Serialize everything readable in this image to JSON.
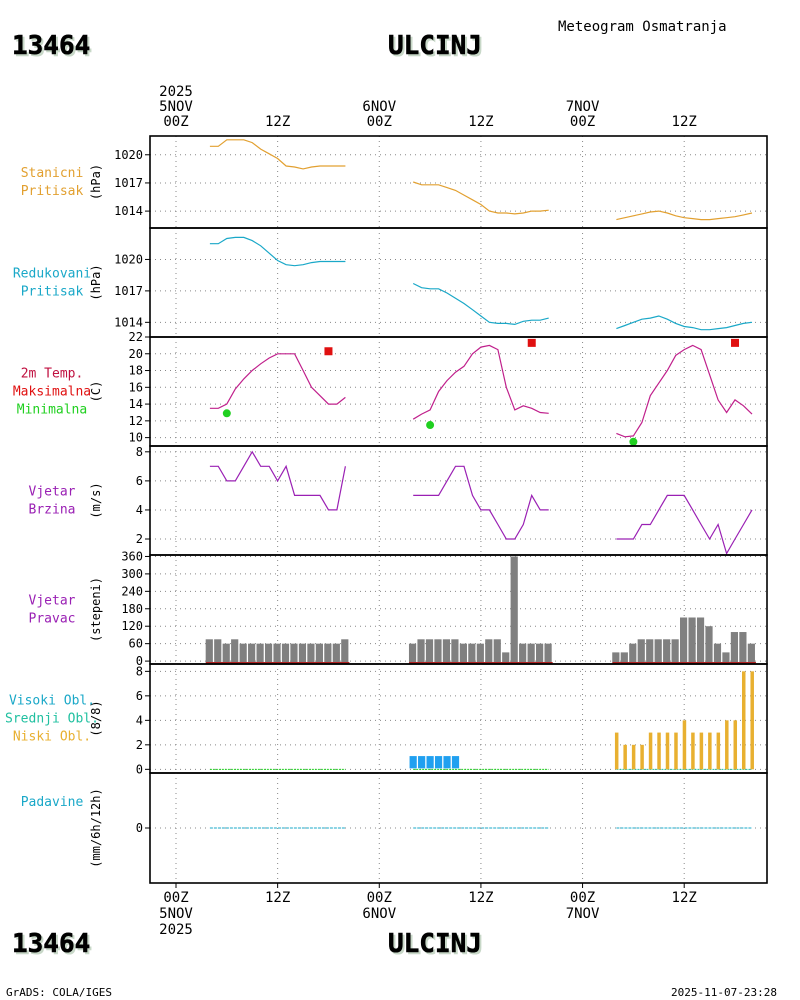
{
  "station": {
    "id": "13464",
    "name": "ULCINJ"
  },
  "header_title": "Meteogram Osmatranja",
  "footer": {
    "left": "GrADS: COLA/IGES",
    "right": "2025-11-07-23:28"
  },
  "colors": {
    "orange": "#e2a030",
    "cyan": "#1aa8c8",
    "magenta": "#c0208c",
    "purple": "#9a20b4",
    "red": "#e01010",
    "green": "#20d020",
    "gray": "#808080",
    "blue": "#20a0f0",
    "gold": "#e8b030",
    "teal": "#20c0a0",
    "crimson": "#c01040"
  },
  "time_axis": {
    "top": [
      {
        "hour": 0,
        "lines": [
          "2025",
          "5NOV",
          "00Z"
        ]
      },
      {
        "hour": 12,
        "lines": [
          "12Z"
        ]
      },
      {
        "hour": 24,
        "lines": [
          "6NOV",
          "00Z"
        ]
      },
      {
        "hour": 36,
        "lines": [
          "12Z"
        ]
      },
      {
        "hour": 48,
        "lines": [
          "7NOV",
          "00Z"
        ]
      },
      {
        "hour": 60,
        "lines": [
          "12Z"
        ]
      }
    ],
    "bottom": [
      {
        "hour": 0,
        "lines": [
          "00Z",
          "5NOV",
          "2025"
        ]
      },
      {
        "hour": 12,
        "lines": [
          "12Z"
        ]
      },
      {
        "hour": 24,
        "lines": [
          "00Z",
          "6NOV"
        ]
      },
      {
        "hour": 36,
        "lines": [
          "12Z"
        ]
      },
      {
        "hour": 48,
        "lines": [
          "00Z",
          "7NOV"
        ]
      },
      {
        "hour": 60,
        "lines": [
          "12Z"
        ]
      }
    ]
  },
  "chart_data": [
    {
      "id": "station-pressure",
      "type": "line",
      "labels": [
        "Stanicni",
        "Pritisak"
      ],
      "ylabel": "(hPa)",
      "ylim": [
        1012.2,
        1022
      ],
      "yticks": [
        1014,
        1017,
        1020
      ],
      "series": [
        {
          "name": "Stanicni Pritisak",
          "color": "orange",
          "segments": [
            {
              "x": [
                4,
                5,
                6,
                7,
                8,
                9,
                10,
                11,
                12,
                13,
                14,
                15,
                16,
                17,
                18,
                19,
                20
              ],
              "y": [
                1020.9,
                1020.9,
                1021.6,
                1021.6,
                1021.6,
                1021.3,
                1020.6,
                1020.1,
                1019.6,
                1018.8,
                1018.7,
                1018.5,
                1018.7,
                1018.8,
                1018.8,
                1018.8,
                1018.8
              ]
            },
            {
              "x": [
                28,
                29,
                30,
                31,
                32,
                33,
                34,
                35,
                36,
                37,
                38,
                39,
                40,
                41,
                42,
                43,
                44
              ],
              "y": [
                1017.1,
                1016.8,
                1016.8,
                1016.8,
                1016.5,
                1016.2,
                1015.7,
                1015.2,
                1014.7,
                1014.0,
                1013.8,
                1013.8,
                1013.7,
                1013.8,
                1014.0,
                1014.0,
                1014.1
              ]
            },
            {
              "x": [
                52,
                53,
                54,
                55,
                56,
                57,
                58,
                59,
                60,
                61,
                62,
                63,
                64,
                65,
                66,
                67,
                68
              ],
              "y": [
                1013.1,
                1013.3,
                1013.5,
                1013.7,
                1013.9,
                1014.0,
                1013.8,
                1013.5,
                1013.3,
                1013.2,
                1013.1,
                1013.1,
                1013.2,
                1013.3,
                1013.4,
                1013.6,
                1013.8
              ]
            }
          ]
        }
      ]
    },
    {
      "id": "reduced-pressure",
      "type": "line",
      "labels": [
        "Redukovani",
        "Pritisak"
      ],
      "ylabel": "(hPa)",
      "ylim": [
        1012.6,
        1023
      ],
      "yticks": [
        1014,
        1017,
        1020
      ],
      "series": [
        {
          "name": "Redukovani Pritisak",
          "color": "cyan",
          "segments": [
            {
              "x": [
                4,
                5,
                6,
                7,
                8,
                9,
                10,
                11,
                12,
                13,
                14,
                15,
                16,
                17,
                18,
                19,
                20
              ],
              "y": [
                1021.5,
                1021.5,
                1022.0,
                1022.1,
                1022.1,
                1021.8,
                1021.3,
                1020.6,
                1019.9,
                1019.5,
                1019.4,
                1019.5,
                1019.7,
                1019.8,
                1019.8,
                1019.8,
                1019.8
              ]
            },
            {
              "x": [
                28,
                29,
                30,
                31,
                32,
                33,
                34,
                35,
                36,
                37,
                38,
                39,
                40,
                41,
                42,
                43,
                44
              ],
              "y": [
                1017.7,
                1017.3,
                1017.2,
                1017.2,
                1016.8,
                1016.3,
                1015.8,
                1015.2,
                1014.6,
                1014.0,
                1013.9,
                1013.9,
                1013.8,
                1014.1,
                1014.2,
                1014.2,
                1014.4
              ]
            },
            {
              "x": [
                52,
                53,
                54,
                55,
                56,
                57,
                58,
                59,
                60,
                61,
                62,
                63,
                64,
                65,
                66,
                67,
                68
              ],
              "y": [
                1013.4,
                1013.7,
                1014.0,
                1014.3,
                1014.4,
                1014.6,
                1014.3,
                1013.9,
                1013.6,
                1013.5,
                1013.3,
                1013.3,
                1013.4,
                1013.5,
                1013.7,
                1013.9,
                1014.0
              ]
            }
          ]
        }
      ]
    },
    {
      "id": "temperature",
      "type": "line",
      "labels": [
        "2m Temp.",
        "Maksimalna",
        "Minimalna"
      ],
      "ylabel": "(C)",
      "ylim": [
        9,
        22
      ],
      "yticks": [
        10,
        12,
        14,
        16,
        18,
        20,
        22
      ],
      "series": [
        {
          "name": "2m Temp.",
          "color": "magenta",
          "segments": [
            {
              "x": [
                4,
                5,
                6,
                7,
                8,
                9,
                10,
                11,
                12,
                13,
                14,
                15,
                16,
                17,
                18,
                19,
                20
              ],
              "y": [
                13.5,
                13.5,
                14.0,
                15.8,
                17.0,
                18.0,
                18.8,
                19.5,
                20.0,
                20.0,
                20.0,
                18.0,
                16.0,
                15.0,
                14.0,
                14.0,
                14.8
              ]
            },
            {
              "x": [
                28,
                29,
                30,
                31,
                32,
                33,
                34,
                35,
                36,
                37,
                38,
                39,
                40,
                41,
                42,
                43,
                44
              ],
              "y": [
                12.2,
                12.8,
                13.3,
                15.5,
                16.8,
                17.8,
                18.5,
                20.0,
                20.8,
                21.0,
                20.5,
                16.0,
                13.3,
                13.8,
                13.5,
                13.0,
                12.9
              ]
            },
            {
              "x": [
                52,
                53,
                54,
                55,
                56,
                57,
                58,
                59,
                60,
                61,
                62,
                63,
                64,
                65,
                66,
                67,
                68
              ],
              "y": [
                10.5,
                10.1,
                10.2,
                11.8,
                15.0,
                16.5,
                18.0,
                19.8,
                20.5,
                21.0,
                20.5,
                17.5,
                14.5,
                13.0,
                14.5,
                13.8,
                12.8
              ]
            }
          ]
        }
      ],
      "maxima": {
        "name": "Maksimalna",
        "color": "red",
        "x": [
          18,
          42,
          66
        ],
        "y": [
          20.3,
          21.3,
          21.3
        ]
      },
      "minima": {
        "name": "Minimalna",
        "color": "green",
        "x": [
          6,
          30,
          54
        ],
        "y": [
          12.9,
          11.5,
          9.5
        ]
      }
    },
    {
      "id": "wind-speed",
      "type": "line",
      "labels": [
        "Vjetar",
        "Brzina"
      ],
      "ylabel": "(m/s)",
      "ylim": [
        0.9,
        8.4
      ],
      "yticks": [
        2,
        4,
        6,
        8
      ],
      "series": [
        {
          "name": "Vjetar Brzina",
          "color": "purple",
          "segments": [
            {
              "x": [
                4,
                5,
                6,
                7,
                8,
                9,
                10,
                11,
                12,
                13,
                14,
                15,
                16,
                17,
                18,
                19,
                20
              ],
              "y": [
                7,
                7,
                6,
                6,
                7,
                8,
                7,
                7,
                6,
                7,
                5,
                5,
                5,
                5,
                4,
                4,
                7
              ]
            },
            {
              "x": [
                28,
                29,
                30,
                31,
                32,
                33,
                34,
                35,
                36,
                37,
                38,
                39,
                40,
                41,
                42,
                43,
                44
              ],
              "y": [
                5,
                5,
                5,
                5,
                6,
                7,
                7,
                5,
                4,
                4,
                3,
                2,
                2,
                3,
                5,
                4,
                4
              ]
            },
            {
              "x": [
                52,
                53,
                54,
                55,
                56,
                57,
                58,
                59,
                60,
                61,
                62,
                63,
                64,
                65,
                66,
                67,
                68
              ],
              "y": [
                2,
                2,
                2,
                3,
                3,
                4,
                5,
                5,
                5,
                4,
                3,
                2,
                3,
                1,
                2,
                3,
                4
              ]
            }
          ]
        }
      ]
    },
    {
      "id": "wind-direction",
      "type": "bar",
      "labels": [
        "Vjetar",
        "Pravac"
      ],
      "ylabel": "(stepeni)",
      "ylim": [
        -10,
        365
      ],
      "yticks": [
        0,
        60,
        120,
        180,
        240,
        300,
        360
      ],
      "bar_color": "gray",
      "series": [
        {
          "x": [
            4,
            5,
            6,
            7,
            8,
            9,
            10,
            11,
            12,
            13,
            14,
            15,
            16,
            17,
            18,
            19,
            20
          ],
          "values": [
            75,
            75,
            60,
            75,
            60,
            60,
            60,
            60,
            60,
            60,
            60,
            60,
            60,
            60,
            60,
            60,
            75
          ]
        },
        {
          "x": [
            28,
            29,
            30,
            31,
            32,
            33,
            34,
            35,
            36,
            37,
            38,
            39,
            40,
            41,
            42,
            43,
            44
          ],
          "values": [
            60,
            75,
            75,
            75,
            75,
            75,
            60,
            60,
            60,
            75,
            75,
            30,
            360,
            60,
            60,
            60,
            60
          ]
        },
        {
          "x": [
            52,
            53,
            54,
            55,
            56,
            57,
            58,
            59,
            60,
            61,
            62,
            63,
            64,
            65,
            66,
            67,
            68
          ],
          "values": [
            30,
            30,
            60,
            75,
            75,
            75,
            75,
            75,
            150,
            150,
            150,
            120,
            60,
            30,
            100,
            100,
            60
          ]
        }
      ]
    },
    {
      "id": "clouds",
      "type": "bar",
      "labels": [
        "Visoki Obl.",
        "Srednji Obl.",
        "Niski Obl."
      ],
      "label_colors": [
        "cyan",
        "teal",
        "gold"
      ],
      "ylabel": "(8/8)",
      "ylim": [
        -0.3,
        8.6
      ],
      "yticks": [
        0,
        2,
        4,
        6,
        8
      ],
      "series": [
        {
          "name": "Srednji Obl.",
          "color": "blue",
          "x": [
            28,
            29,
            30,
            31,
            32,
            33
          ],
          "values": [
            1,
            1,
            1,
            1,
            1,
            1
          ]
        },
        {
          "name": "Niski Obl.",
          "color": "gold",
          "x": [
            52,
            53,
            54,
            55,
            56,
            57,
            58,
            59,
            60,
            61,
            62,
            63,
            64,
            65,
            66,
            67,
            68
          ],
          "values": [
            3,
            2,
            2,
            2,
            3,
            3,
            3,
            3,
            4,
            3,
            3,
            3,
            3,
            4,
            4,
            8,
            8
          ]
        }
      ]
    },
    {
      "id": "precipitation",
      "type": "line",
      "labels": [
        "Padavine"
      ],
      "ylabel": "(mm/6h/12h)",
      "ylim": [
        -1,
        1
      ],
      "yticks": [
        0
      ],
      "series": [
        {
          "name": "Padavine",
          "color": "cyan",
          "segments": [
            {
              "x": [
                4,
                20
              ],
              "y": [
                0,
                0
              ]
            },
            {
              "x": [
                28,
                44
              ],
              "y": [
                0,
                0
              ]
            },
            {
              "x": [
                52,
                68
              ],
              "y": [
                0,
                0
              ]
            }
          ]
        }
      ]
    }
  ]
}
